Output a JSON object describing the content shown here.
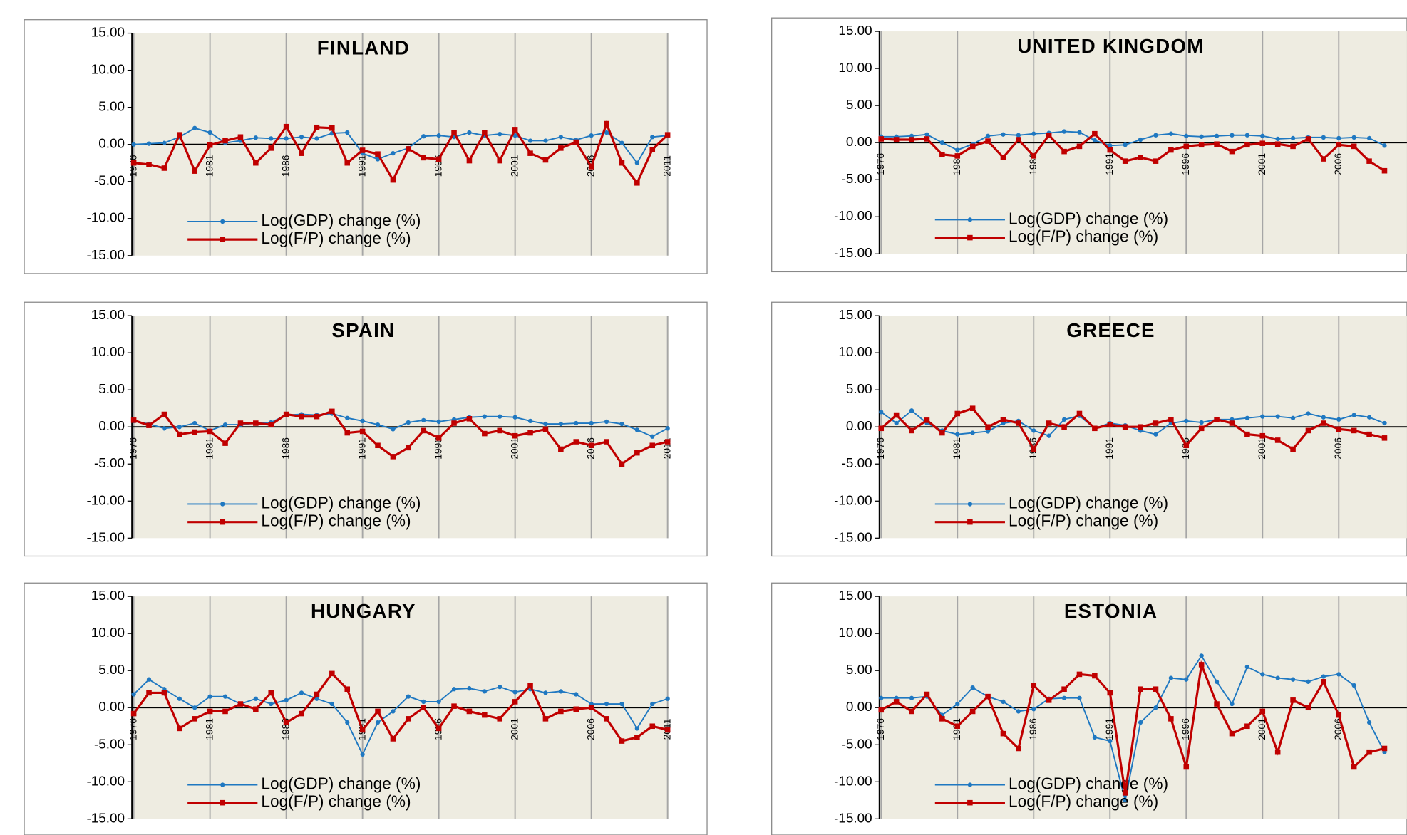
{
  "chart_data": [
    {
      "type": "line",
      "title": "FINLAND",
      "categories": [
        "1976",
        null,
        null,
        null,
        null,
        "1981",
        null,
        null,
        null,
        null,
        "1986",
        null,
        null,
        null,
        null,
        "1991",
        null,
        null,
        null,
        null,
        "1996",
        null,
        null,
        null,
        null,
        "2001",
        null,
        null,
        null,
        null,
        "2006",
        null,
        null,
        null,
        null,
        "2011"
      ],
      "series": [
        {
          "name": "Log(GDP) change (%)",
          "color": "#1f78c1",
          "values": [
            0.0,
            0.1,
            0.2,
            1.0,
            2.2,
            1.6,
            0.2,
            0.5,
            0.9,
            0.8,
            0.8,
            1.0,
            0.8,
            1.5,
            1.6,
            -1.2,
            -2.0,
            -1.2,
            -0.5,
            1.1,
            1.2,
            1.0,
            1.6,
            1.2,
            1.4,
            1.2,
            0.5,
            0.5,
            1.0,
            0.6,
            1.2,
            1.6,
            0.2,
            -2.5,
            1.0,
            1.2
          ]
        },
        {
          "name": "Log(F/P) change (%)",
          "color": "#c00000",
          "values": [
            -2.5,
            -2.7,
            -3.2,
            1.3,
            -3.6,
            -0.1,
            0.5,
            1.0,
            -2.5,
            -0.5,
            2.4,
            -1.2,
            2.3,
            2.2,
            -2.5,
            -0.8,
            -1.3,
            -4.8,
            -0.6,
            -1.8,
            -2.0,
            1.6,
            -2.2,
            1.6,
            -2.2,
            2.0,
            -1.2,
            -2.1,
            -0.5,
            0.3,
            -3.0,
            2.8,
            -2.5,
            -5.2,
            -0.7,
            1.3
          ]
        }
      ],
      "ylim": [
        -15,
        15
      ],
      "yticks": [
        {
          "value": -15,
          "label": "-15.00"
        },
        {
          "value": -10,
          "label": "-10.00"
        },
        {
          "value": -5,
          "label": "-5.00"
        },
        {
          "value": 0,
          "label": "0.00"
        },
        {
          "value": 5,
          "label": "5.00"
        },
        {
          "value": 10,
          "label": "10.00"
        },
        {
          "value": 15,
          "label": "15.00"
        }
      ]
    },
    {
      "type": "line",
      "title": "UNITED KINGDOM",
      "categories": [
        "1976",
        null,
        null,
        null,
        null,
        "1981",
        null,
        null,
        null,
        null,
        "1986",
        null,
        null,
        null,
        null,
        "1991",
        null,
        null,
        null,
        null,
        "1996",
        null,
        null,
        null,
        null,
        "2001",
        null,
        null,
        null,
        null,
        "2006",
        null,
        null,
        null
      ],
      "series": [
        {
          "name": "Log(GDP) change (%)",
          "color": "#1f78c1",
          "values": [
            0.8,
            0.8,
            0.9,
            1.1,
            0.0,
            -1.0,
            -0.2,
            0.9,
            1.1,
            1.0,
            1.2,
            1.3,
            1.5,
            1.4,
            0.3,
            -0.4,
            -0.3,
            0.4,
            1.0,
            1.2,
            0.9,
            0.8,
            0.9,
            1.0,
            1.0,
            0.9,
            0.5,
            0.6,
            0.7,
            0.7,
            0.6,
            0.7,
            0.6,
            -0.4
          ]
        },
        {
          "name": "Log(F/P) change (%)",
          "color": "#c00000",
          "values": [
            0.5,
            0.4,
            0.4,
            0.5,
            -1.6,
            -1.8,
            -0.5,
            0.2,
            -2.0,
            0.4,
            -1.8,
            1.0,
            -1.2,
            -0.5,
            1.2,
            -1.0,
            -2.5,
            -2.0,
            -2.5,
            -1.0,
            -0.5,
            -0.3,
            -0.2,
            -1.2,
            -0.3,
            -0.1,
            -0.2,
            -0.5,
            0.5,
            -2.2,
            -0.3,
            -0.5,
            -2.5,
            -3.8
          ]
        }
      ],
      "ylim": [
        -15,
        15
      ],
      "yticks": [
        {
          "value": -15,
          "label": "-15.00"
        },
        {
          "value": -10,
          "label": "-10.00"
        },
        {
          "value": -5,
          "label": "-5.00"
        },
        {
          "value": 0,
          "label": "0.00"
        },
        {
          "value": 5,
          "label": "5.00"
        },
        {
          "value": 10,
          "label": "10.00"
        },
        {
          "value": 15,
          "label": "15.00"
        }
      ]
    },
    {
      "type": "line",
      "title": "SPAIN",
      "categories": [
        "1976",
        null,
        null,
        null,
        null,
        "1981",
        null,
        null,
        null,
        null,
        "1986",
        null,
        null,
        null,
        null,
        "1991",
        null,
        null,
        null,
        null,
        "1996",
        null,
        null,
        null,
        null,
        "2001",
        null,
        null,
        null,
        null,
        "2006",
        null,
        null,
        null,
        null,
        "2011"
      ],
      "series": [
        {
          "name": "Log(GDP) change (%)",
          "color": "#1f78c1",
          "values": [
            0.8,
            0.4,
            -0.2,
            0.0,
            0.5,
            -0.5,
            0.3,
            0.3,
            0.5,
            0.6,
            1.6,
            1.7,
            1.6,
            1.8,
            1.2,
            0.8,
            0.3,
            -0.3,
            0.6,
            0.9,
            0.7,
            1.0,
            1.3,
            1.4,
            1.4,
            1.3,
            0.8,
            0.4,
            0.4,
            0.5,
            0.5,
            0.7,
            0.4,
            -0.4,
            -1.3,
            -0.2
          ]
        },
        {
          "name": "Log(F/P) change (%)",
          "color": "#c00000",
          "values": [
            0.9,
            0.2,
            1.7,
            -1.0,
            -0.7,
            -0.6,
            -2.2,
            0.5,
            0.5,
            0.3,
            1.7,
            1.4,
            1.4,
            2.1,
            -0.8,
            -0.6,
            -2.5,
            -4.0,
            -2.8,
            -0.5,
            -1.5,
            0.5,
            1.1,
            -0.9,
            -0.5,
            -1.2,
            -0.8,
            -0.3,
            -3.0,
            -2.0,
            -2.5,
            -2.0,
            -5.0,
            -3.5,
            -2.5,
            -2.0
          ]
        }
      ],
      "ylim": [
        -15,
        15
      ],
      "yticks": [
        {
          "value": -15,
          "label": "-15.00"
        },
        {
          "value": -10,
          "label": "-10.00"
        },
        {
          "value": -5,
          "label": "-5.00"
        },
        {
          "value": 0,
          "label": "0.00"
        },
        {
          "value": 5,
          "label": "5.00"
        },
        {
          "value": 10,
          "label": "10.00"
        },
        {
          "value": 15,
          "label": "15.00"
        }
      ]
    },
    {
      "type": "line",
      "title": "GREECE",
      "categories": [
        "1976",
        null,
        null,
        null,
        null,
        "1981",
        null,
        null,
        null,
        null,
        "1986",
        null,
        null,
        null,
        null,
        "1991",
        null,
        null,
        null,
        null,
        "1996",
        null,
        null,
        null,
        null,
        "2001",
        null,
        null,
        null,
        null,
        "2006",
        null,
        null,
        null
      ],
      "series": [
        {
          "name": "Log(GDP) change (%)",
          "color": "#1f78c1",
          "values": [
            2.0,
            0.5,
            2.2,
            0.5,
            -0.5,
            -1.0,
            -0.8,
            -0.6,
            0.5,
            0.8,
            -0.5,
            -1.2,
            1.0,
            1.5,
            -0.2,
            0.5,
            0.2,
            -0.5,
            -1.0,
            0.5,
            0.8,
            0.6,
            1.0,
            1.0,
            1.2,
            1.4,
            1.4,
            1.2,
            1.8,
            1.3,
            1.0,
            1.6,
            1.3,
            0.5
          ]
        },
        {
          "name": "Log(F/P) change (%)",
          "color": "#c00000",
          "values": [
            -0.2,
            1.6,
            -0.5,
            0.9,
            -0.8,
            1.8,
            2.5,
            0.0,
            1.0,
            0.5,
            -3.0,
            0.5,
            0.0,
            1.8,
            -0.2,
            0.3,
            0.0,
            0.0,
            0.5,
            1.0,
            -2.5,
            -0.2,
            1.0,
            0.5,
            -1.0,
            -1.2,
            -1.8,
            -3.0,
            -0.5,
            0.5,
            -0.3,
            -0.5,
            -1.0,
            -1.5
          ]
        }
      ],
      "ylim": [
        -15,
        15
      ],
      "yticks": [
        {
          "value": -15,
          "label": "-15.00"
        },
        {
          "value": -10,
          "label": "-10.00"
        },
        {
          "value": -5,
          "label": "-5.00"
        },
        {
          "value": 0,
          "label": "0.00"
        },
        {
          "value": 5,
          "label": "5.00"
        },
        {
          "value": 10,
          "label": "10.00"
        },
        {
          "value": 15,
          "label": "15.00"
        }
      ]
    },
    {
      "type": "line",
      "title": "HUNGARY",
      "categories": [
        "1976",
        null,
        null,
        null,
        null,
        "1981",
        null,
        null,
        null,
        null,
        "1986",
        null,
        null,
        null,
        null,
        "1991",
        null,
        null,
        null,
        null,
        "1996",
        null,
        null,
        null,
        null,
        "2001",
        null,
        null,
        null,
        null,
        "2006",
        null,
        null,
        null,
        null,
        "2011"
      ],
      "series": [
        {
          "name": "Log(GDP) change (%)",
          "color": "#1f78c1",
          "values": [
            1.8,
            3.8,
            2.5,
            1.2,
            0.0,
            1.5,
            1.5,
            0.5,
            1.2,
            0.5,
            1.0,
            2.0,
            1.2,
            0.5,
            -2.0,
            -6.3,
            -2.0,
            -0.5,
            1.5,
            0.8,
            0.8,
            2.5,
            2.6,
            2.2,
            2.8,
            2.1,
            2.5,
            2.0,
            2.2,
            1.8,
            0.5,
            0.5,
            0.5,
            -2.8,
            0.5,
            1.2
          ]
        },
        {
          "name": "Log(F/P) change (%)",
          "color": "#c00000",
          "values": [
            -0.8,
            2.0,
            2.0,
            -2.8,
            -1.5,
            -0.5,
            -0.5,
            0.5,
            -0.2,
            2.0,
            -2.0,
            -0.8,
            1.8,
            4.6,
            2.5,
            -3.0,
            -0.5,
            -4.2,
            -1.5,
            0.0,
            -2.8,
            0.2,
            -0.5,
            -1.0,
            -1.5,
            0.8,
            3.0,
            -1.5,
            -0.5,
            -0.2,
            0.0,
            -1.5,
            -4.5,
            -4.0,
            -2.5,
            -3.0
          ]
        }
      ],
      "ylim": [
        -15,
        15
      ],
      "yticks": [
        {
          "value": -15,
          "label": "-15.00"
        },
        {
          "value": -10,
          "label": "-10.00"
        },
        {
          "value": -5,
          "label": "-5.00"
        },
        {
          "value": 0,
          "label": "0.00"
        },
        {
          "value": 5,
          "label": "5.00"
        },
        {
          "value": 10,
          "label": "10.00"
        },
        {
          "value": 15,
          "label": "15.00"
        }
      ]
    },
    {
      "type": "line",
      "title": "ESTONIA",
      "categories": [
        "1976",
        null,
        null,
        null,
        null,
        "1981",
        null,
        null,
        null,
        null,
        "1986",
        null,
        null,
        null,
        null,
        "1991",
        null,
        null,
        null,
        null,
        "1996",
        null,
        null,
        null,
        null,
        "2001",
        null,
        null,
        null,
        null,
        "2006",
        null,
        null,
        null
      ],
      "series": [
        {
          "name": "Log(GDP) change (%)",
          "color": "#1f78c1",
          "values": [
            1.3,
            1.3,
            1.3,
            1.5,
            -1.0,
            0.5,
            2.7,
            1.5,
            0.8,
            -0.5,
            -0.2,
            1.2,
            1.3,
            1.3,
            -4.0,
            -4.5,
            -12.5,
            -2.0,
            0.0,
            4.0,
            3.8,
            7.0,
            3.5,
            0.5,
            5.5,
            4.5,
            4.0,
            3.8,
            3.5,
            4.2,
            4.5,
            3.0,
            -2.0,
            -6.0
          ]
        },
        {
          "name": "Log(F/P) change (%)",
          "color": "#c00000",
          "values": [
            -0.3,
            0.8,
            -0.5,
            1.8,
            -1.5,
            -2.5,
            -0.5,
            1.5,
            -3.5,
            -5.5,
            3.0,
            1.0,
            2.5,
            4.5,
            4.3,
            2.0,
            -11.5,
            2.5,
            2.5,
            -1.5,
            -8.0,
            5.8,
            0.5,
            -3.5,
            -2.5,
            -0.5,
            -6.0,
            1.0,
            0.0,
            3.5,
            -1.0,
            -8.0,
            -6.0,
            -5.5
          ]
        }
      ],
      "ylim": [
        -15,
        15
      ],
      "yticks": [
        {
          "value": -15,
          "label": "-15.00"
        },
        {
          "value": -10,
          "label": "-10.00"
        },
        {
          "value": -5,
          "label": "-5.00"
        },
        {
          "value": 0,
          "label": "0.00"
        },
        {
          "value": 5,
          "label": "5.00"
        },
        {
          "value": 10,
          "label": "10.00"
        },
        {
          "value": 15,
          "label": "15.00"
        }
      ]
    }
  ]
}
